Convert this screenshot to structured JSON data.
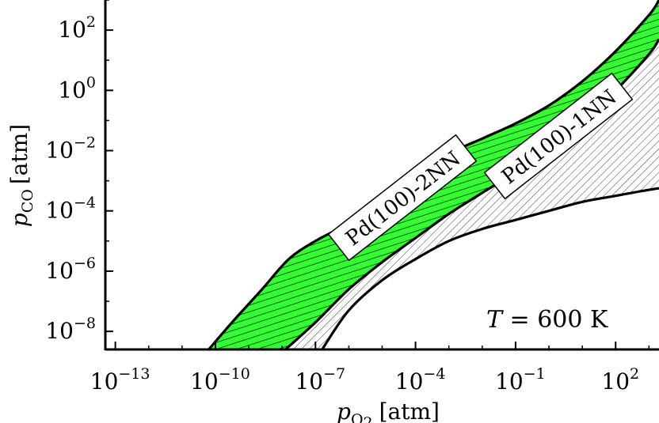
{
  "chart_data": {
    "type": "area",
    "xlabel": {
      "base": "p",
      "sub": "O",
      "sub2": "2",
      "unit": "[atm]"
    },
    "ylabel": {
      "base": "p",
      "sub": "CO",
      "unit": "[atm]"
    },
    "x_scale": "log",
    "y_scale": "log",
    "xlim_exp": [
      -13.3,
      3.3
    ],
    "ylim_exp": [
      -8.6,
      3
    ],
    "x_ticks": [
      {
        "base": "10",
        "exp": "−13",
        "value_exp": -13
      },
      {
        "base": "10",
        "exp": "−10",
        "value_exp": -10
      },
      {
        "base": "10",
        "exp": "−7",
        "value_exp": -7
      },
      {
        "base": "10",
        "exp": "−4",
        "value_exp": -4
      },
      {
        "base": "10",
        "exp": "−1",
        "value_exp": -1
      },
      {
        "base": "10",
        "exp": "2",
        "value_exp": 2
      }
    ],
    "y_ticks": [
      {
        "base": "10",
        "exp": "2",
        "value_exp": 2
      },
      {
        "base": "10",
        "exp": "0",
        "value_exp": 0
      },
      {
        "base": "10",
        "exp": "−2",
        "value_exp": -2
      },
      {
        "base": "10",
        "exp": "−4",
        "value_exp": -4
      },
      {
        "base": "10",
        "exp": "−6",
        "value_exp": -6
      },
      {
        "base": "10",
        "exp": "−8",
        "value_exp": -8
      }
    ],
    "boundaries_log10": {
      "upper": [
        [
          -10.2,
          -8.6
        ],
        [
          -9.5,
          -7.7
        ],
        [
          -8.6,
          -6.6
        ],
        [
          -7.8,
          -5.6
        ],
        [
          -7,
          -5
        ],
        [
          -6,
          -4.4
        ],
        [
          -5,
          -3.6
        ],
        [
          -4,
          -2.8
        ],
        [
          -3,
          -2.1
        ],
        [
          -2,
          -1.6
        ],
        [
          -1,
          -1.1
        ],
        [
          0,
          -0.5
        ],
        [
          1,
          0.3
        ],
        [
          2,
          1.3
        ],
        [
          3,
          2.5
        ],
        [
          3.3,
          3
        ]
      ],
      "middle": [
        [
          -7.9,
          -8.6
        ],
        [
          -7,
          -7.7
        ],
        [
          -6,
          -6.6
        ],
        [
          -5,
          -5.7
        ],
        [
          -4,
          -4.9
        ],
        [
          -3,
          -4.1
        ],
        [
          -2,
          -3.4
        ],
        [
          -1,
          -2.7
        ],
        [
          0,
          -1.8
        ],
        [
          1,
          -1
        ],
        [
          2,
          0
        ],
        [
          3,
          1.2
        ],
        [
          3.3,
          1.7
        ]
      ],
      "lower": [
        [
          -6.8,
          -8.6
        ],
        [
          -6,
          -7.3
        ],
        [
          -5,
          -6.3
        ],
        [
          -4,
          -5.6
        ],
        [
          -3,
          -5
        ],
        [
          -2,
          -4.6
        ],
        [
          -1,
          -4.3
        ],
        [
          0,
          -4
        ],
        [
          1,
          -3.7
        ],
        [
          2,
          -3.5
        ],
        [
          3,
          -3.3
        ],
        [
          3.3,
          -3.25
        ]
      ]
    },
    "regions": [
      {
        "label": "Pd(100)-2NN",
        "color": "#33ff33",
        "hatch": "horizontal"
      },
      {
        "label": "Pd(100)-1NN",
        "color": "#ffffff",
        "hatch": "diagonal"
      }
    ],
    "annotation": {
      "prefix": "T",
      "text": " = 600 K"
    },
    "grid": false,
    "legend": "none"
  }
}
